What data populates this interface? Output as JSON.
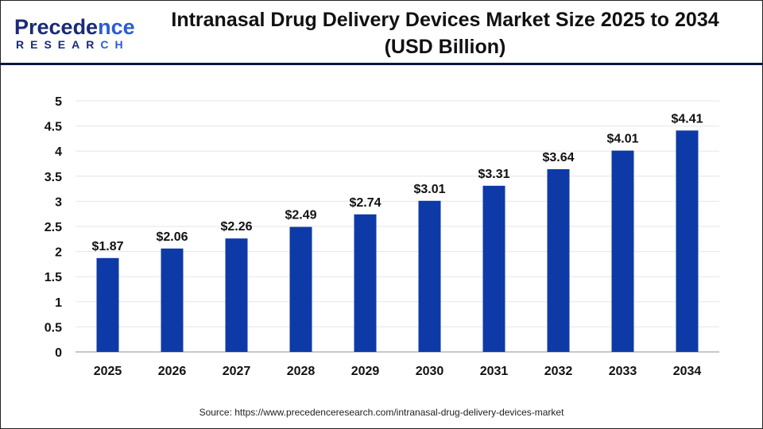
{
  "logo": {
    "line1_main": "Precede",
    "line1_tail": "nce",
    "line2_main": "RESEAR",
    "line2_tail": "CH"
  },
  "title_line1": "Intranasal Drug Delivery Devices Market Size 2025 to 2034",
  "title_line2": "(USD Billion)",
  "source": "Source: https://www.precedenceresearch.com/intranasal-drug-delivery-devices-market",
  "chart_data": {
    "type": "bar",
    "title": "Intranasal Drug Delivery Devices Market Size 2025 to 2034 (USD Billion)",
    "categories": [
      "2025",
      "2026",
      "2027",
      "2028",
      "2029",
      "2030",
      "2031",
      "2032",
      "2033",
      "2034"
    ],
    "values": [
      1.87,
      2.06,
      2.26,
      2.49,
      2.74,
      3.01,
      3.31,
      3.64,
      4.01,
      4.41
    ],
    "data_labels": [
      "$1.87",
      "$2.06",
      "$2.26",
      "$2.49",
      "$2.74",
      "$3.01",
      "$3.31",
      "$3.64",
      "$4.01",
      "$4.41"
    ],
    "yticks": [
      "0",
      "0.5",
      "1",
      "1.5",
      "2",
      "2.5",
      "3",
      "3.5",
      "4",
      "4.5",
      "5"
    ],
    "ylim": [
      0,
      5
    ],
    "grid": true,
    "bar_color": "#0e3aa8"
  }
}
